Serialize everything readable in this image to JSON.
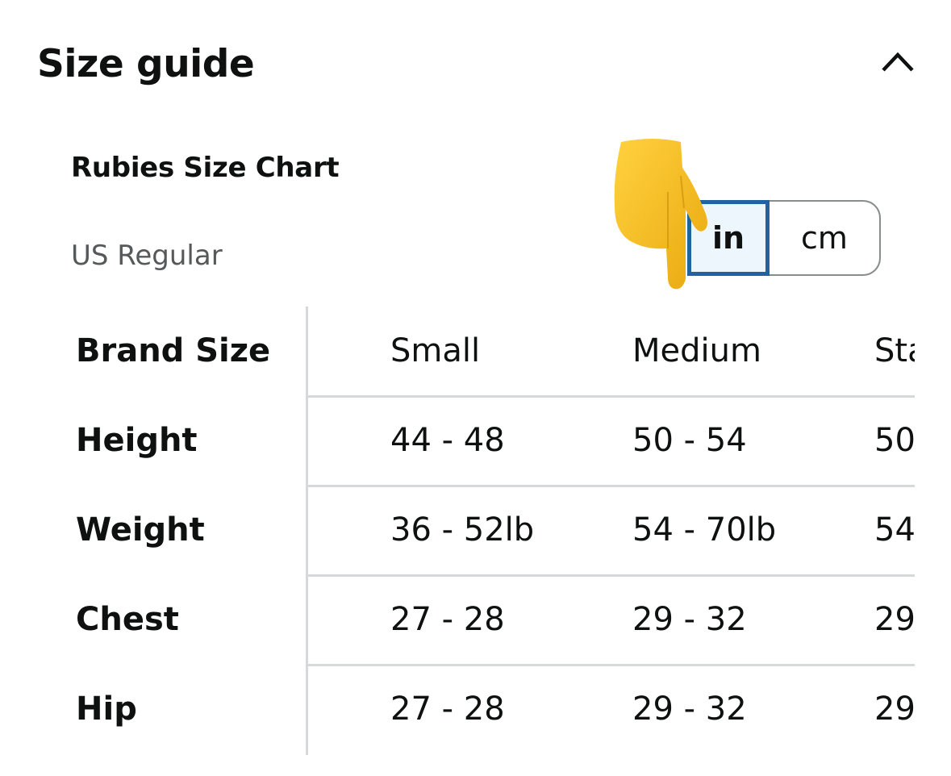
{
  "header": {
    "title": "Size guide",
    "collapse_icon": "chevron-up-icon"
  },
  "chart": {
    "title": "Rubies Size Chart",
    "region": "US Regular"
  },
  "unit_toggle": {
    "options": [
      "in",
      "cm"
    ],
    "selected": "in",
    "accent": "#2162a1"
  },
  "overlay": {
    "icon": "pointing-down-hand-emoji"
  },
  "table": {
    "rows": [
      {
        "label": "Brand Size",
        "values": [
          "Small",
          "Medium",
          "Sta"
        ]
      },
      {
        "label": "Height",
        "values": [
          "44 - 48",
          "50 - 54",
          "50"
        ]
      },
      {
        "label": "Weight",
        "values": [
          "36 - 52lb",
          "54 - 70lb",
          "54"
        ]
      },
      {
        "label": "Chest",
        "values": [
          "27 - 28",
          "29 - 32",
          "29"
        ]
      },
      {
        "label": "Hip",
        "values": [
          "27 - 28",
          "29 - 32",
          "29"
        ]
      }
    ]
  }
}
